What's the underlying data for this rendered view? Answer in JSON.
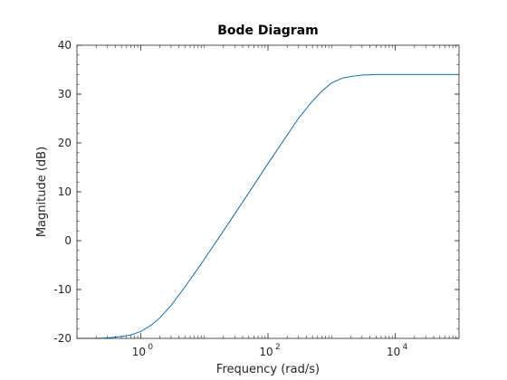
{
  "chart_data": {
    "type": "line",
    "title": "Bode Diagram",
    "xlabel": "Frequency  (rad/s)",
    "ylabel": "Magnitude (dB)",
    "xscale": "log",
    "xlim": [
      0.1,
      100000
    ],
    "ylim": [
      -20,
      40
    ],
    "yticks": [
      -20,
      -10,
      0,
      10,
      20,
      30,
      40
    ],
    "ytick_labels": [
      "-20",
      "-10",
      "0",
      "10",
      "20",
      "30",
      "40"
    ],
    "xticks": [
      1,
      100,
      10000
    ],
    "xtick_labels": [
      {
        "base": "10",
        "exp": "0"
      },
      {
        "base": "10",
        "exp": "2"
      },
      {
        "base": "10",
        "exp": "4"
      }
    ],
    "grid": false,
    "line_color": "#0072bd",
    "axis_color": "#262626",
    "series": [
      {
        "x": [
          0.1,
          0.2,
          0.3,
          0.5,
          0.7,
          1,
          1.5,
          2,
          3,
          5,
          7,
          10,
          20,
          50,
          100,
          200,
          300,
          500,
          700,
          1000,
          1500,
          2000,
          3000,
          5000,
          10000,
          100000
        ],
        "y": [
          -20,
          -20,
          -19.9,
          -19.6,
          -19.3,
          -18.6,
          -17.2,
          -15.8,
          -13.3,
          -9.4,
          -6.7,
          -3.8,
          2.0,
          9.8,
          15.8,
          21.6,
          25.0,
          28.6,
          30.6,
          32.3,
          33.3,
          33.6,
          33.9,
          34.0,
          34.0,
          34.0
        ]
      }
    ]
  }
}
